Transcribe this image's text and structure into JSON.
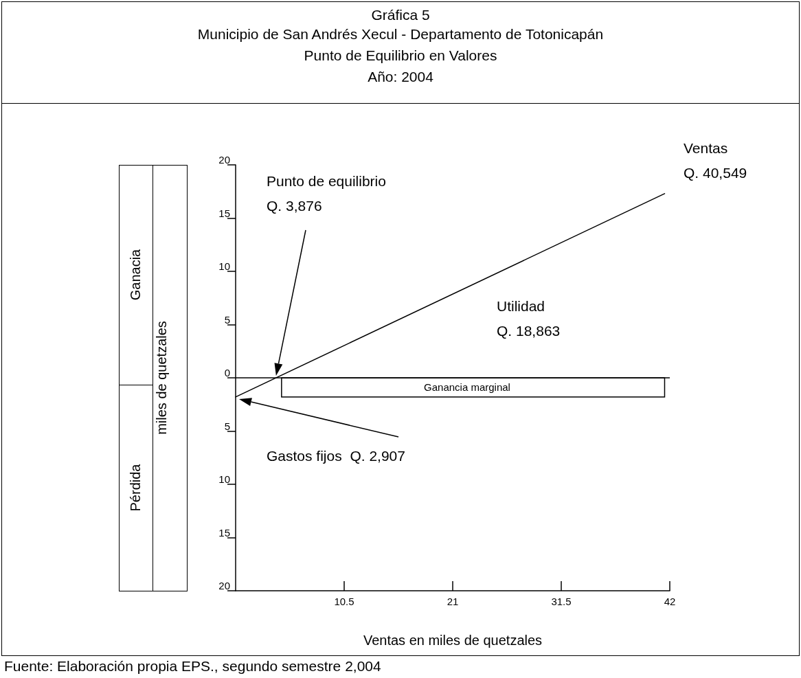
{
  "chart_data": {
    "type": "line",
    "title": "Gráfica 5",
    "subtitle": "Municipio de San Andrés Xecul - Departamento de Totonicapán\nPunto de Equilibrio en Valores\nAño: 2004",
    "xlabel": "Ventas en miles de quetzales",
    "ylabel": "miles de quetzales",
    "series": [
      {
        "color": "#000000",
        "x": [
          0,
          41.5
        ],
        "values": [
          -1.8,
          17.3
        ]
      }
    ],
    "xlim": [
      0,
      42
    ],
    "xticks": [
      10.5,
      21,
      31.5,
      42
    ],
    "ylim": [
      -20,
      20
    ],
    "yticks": [
      {
        "value": -20,
        "label": "20"
      },
      {
        "value": -15,
        "label": "15"
      },
      {
        "value": -10,
        "label": "10"
      },
      {
        "value": -5,
        "label": "5"
      },
      0,
      5,
      10,
      15,
      20
    ],
    "ref_lines": [
      {
        "axis": "y",
        "value": 0,
        "color": "#000000"
      }
    ],
    "marker": "none",
    "line_style": "solid",
    "grid": false,
    "annotations": [
      "Punto de equilibrio\nQ. 3,876",
      "Gastos fijos  Q. 2,907",
      "Ventas\nQ. 40,549",
      "Utilidad\nQ. 18,863",
      "Ganancia marginal",
      "Ganacia",
      "Pérdida",
      "Fuente: Elaboración propia EPS., segundo semestre 2,004"
    ]
  }
}
